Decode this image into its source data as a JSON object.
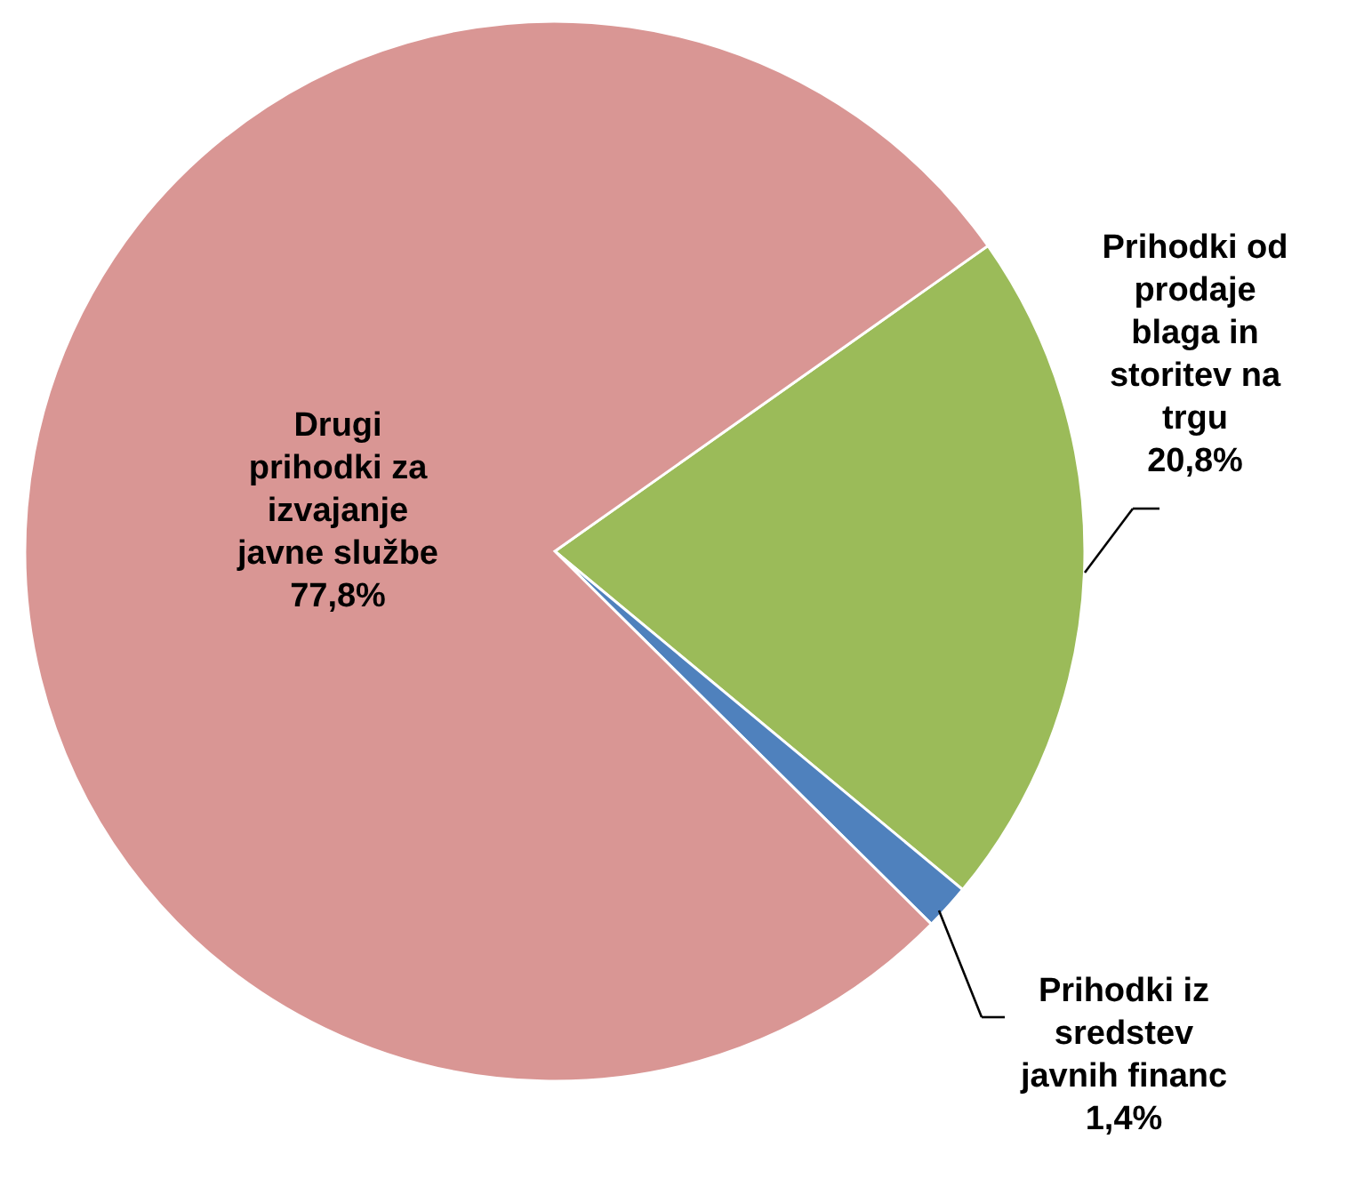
{
  "chart_data": {
    "type": "pie",
    "categories": [
      "Prihodki od prodaje blaga in storitev  na trgu",
      "Prihodki iz sredstev javnih financ",
      "Drugi prihodki za izvajanje javne službe"
    ],
    "values": [
      20.8,
      1.4,
      77.8
    ],
    "colors": [
      "#9bbb59",
      "#4f81bd",
      "#d99694"
    ],
    "value_labels": [
      "20,8%",
      "1,4%",
      "77,8%"
    ]
  }
}
